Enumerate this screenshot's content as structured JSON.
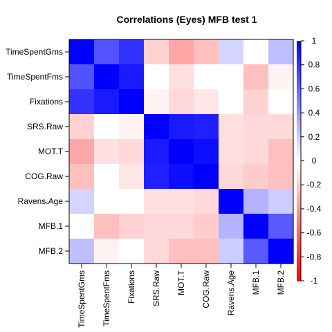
{
  "chart_data": {
    "type": "heatmap",
    "title": "Correlations (Eyes) MFB test 1",
    "row_labels": [
      "TimeSpentGms",
      "TimeSpentFms",
      "Fixations",
      "SRS.Raw",
      "MOT.T",
      "COG.Raw",
      "Ravens.Age",
      "MFB.1",
      "MFB.2"
    ],
    "col_labels": [
      "TimeSpentGms",
      "TimeSpentFms",
      "Fixations",
      "SRS.Raw",
      "MOT.T",
      "COG.Raw",
      "Ravens.Age",
      "MFB.1",
      "MFB.2"
    ],
    "values": [
      [
        1.0,
        0.68,
        0.8,
        -0.18,
        -0.35,
        -0.25,
        0.17,
        0.0,
        0.25
      ],
      [
        0.68,
        1.0,
        0.9,
        0.0,
        -0.12,
        0.0,
        0.0,
        -0.25,
        -0.05
      ],
      [
        0.8,
        0.9,
        1.0,
        -0.05,
        -0.15,
        -0.1,
        0.0,
        -0.18,
        0.0
      ],
      [
        -0.18,
        0.0,
        -0.05,
        1.0,
        0.9,
        0.88,
        -0.12,
        -0.15,
        -0.15
      ],
      [
        -0.35,
        -0.12,
        -0.15,
        0.9,
        1.0,
        0.95,
        -0.12,
        -0.15,
        -0.25
      ],
      [
        -0.25,
        0.0,
        -0.1,
        0.88,
        0.95,
        1.0,
        -0.15,
        -0.2,
        -0.25
      ],
      [
        0.17,
        0.0,
        0.0,
        -0.12,
        -0.12,
        -0.15,
        1.0,
        0.3,
        0.2
      ],
      [
        0.0,
        -0.25,
        -0.18,
        -0.15,
        -0.15,
        -0.2,
        0.3,
        1.0,
        0.65
      ],
      [
        0.25,
        -0.05,
        0.0,
        -0.15,
        -0.25,
        -0.25,
        0.2,
        0.65,
        1.0
      ]
    ],
    "zlim": [
      -1,
      1
    ],
    "colorbar": {
      "ticks": [
        -1,
        -0.8,
        -0.6,
        -0.4,
        -0.2,
        0,
        0.2,
        0.4,
        0.6,
        0.8,
        1
      ],
      "tick_labels": [
        "-1",
        "-0.8",
        "-0.6",
        "-0.4",
        "-0.2",
        "0",
        "0.2",
        "0.4",
        "0.6",
        "0.8",
        "1"
      ]
    },
    "colors": {
      "negative": "#ff0000",
      "zero": "#ffffff",
      "positive": "#0000ff"
    },
    "grid": false,
    "legend_position": "right"
  }
}
